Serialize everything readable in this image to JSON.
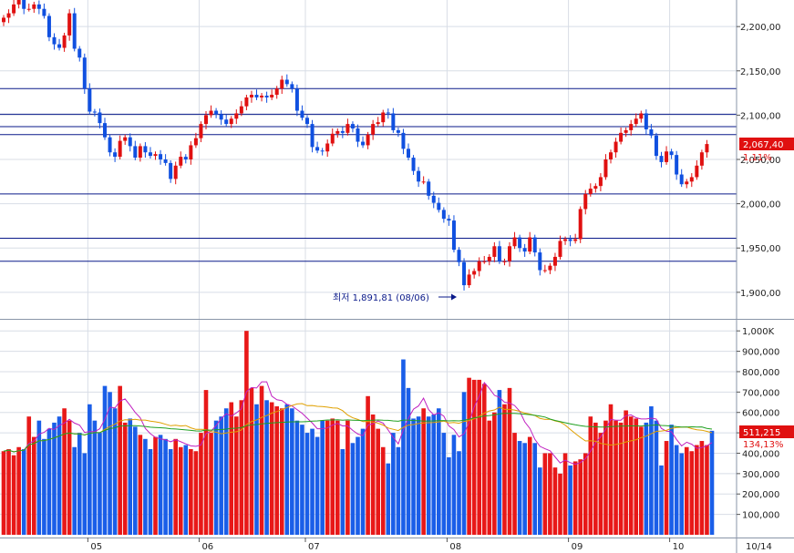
{
  "chart_data": [
    {
      "type": "candlestick",
      "y_range": [
        1870,
        2230
      ],
      "price_axis_ticks": [
        "2,200,00",
        "2,150,00",
        "2,100,00",
        "2,050,00",
        "2,000,00",
        "1,950,00",
        "1,900,00"
      ],
      "price_axis_tick_values": [
        2200,
        2150,
        2100,
        2050,
        2000,
        1950,
        1900
      ],
      "horizontal_levels": [
        2130,
        2101,
        2087,
        2078,
        2011,
        1961,
        1935
      ],
      "last_price_label": "2,067,40",
      "last_price_value": 2067.4,
      "change_pct_label": "1,11%",
      "low_annotation": {
        "text": "최저 1,891,81 (08/06)",
        "value": 1891.81,
        "index": 91
      },
      "ohlc_start": 2205,
      "ohlc_closes": [
        2210,
        2215,
        2225,
        2230,
        2220,
        2220,
        2225,
        2220,
        2212,
        2188,
        2180,
        2176,
        2190,
        2215,
        2175,
        2165,
        2130,
        2104,
        2103,
        2091,
        2075,
        2058,
        2053,
        2071,
        2075,
        2065,
        2052,
        2065,
        2058,
        2054,
        2056,
        2050,
        2046,
        2028,
        2043,
        2053,
        2050,
        2066,
        2074,
        2090,
        2100,
        2105,
        2101,
        2095,
        2090,
        2096,
        2102,
        2110,
        2120,
        2123,
        2120,
        2122,
        2120,
        2123,
        2130,
        2140,
        2135,
        2130,
        2105,
        2097,
        2090,
        2064,
        2060,
        2059,
        2068,
        2079,
        2082,
        2080,
        2090,
        2085,
        2070,
        2066,
        2078,
        2090,
        2092,
        2103,
        2102,
        2083,
        2080,
        2062,
        2052,
        2037,
        2025,
        2025,
        2009,
        2001,
        1993,
        1983,
        1981,
        1948,
        1934,
        1908,
        1920,
        1924,
        1935,
        1935,
        1940,
        1952,
        1935,
        1935,
        1952,
        1962,
        1950,
        1946,
        1962,
        1945,
        1925,
        1925,
        1930,
        1940,
        1958,
        1960,
        1958,
        1960,
        1994,
        2011,
        2017,
        2020,
        2030,
        2050,
        2058,
        2070,
        2080,
        2083,
        2090,
        2096,
        2102,
        2084,
        2077,
        2054,
        2047,
        2059,
        2055,
        2033,
        2022,
        2025,
        2030,
        2043,
        2058,
        2067.4
      ]
    },
    {
      "type": "bar",
      "y_range": [
        0,
        1050000
      ],
      "volume_axis_ticks": [
        "1,000K",
        "900,000",
        "800,000",
        "700,000",
        "600,000",
        "500,000",
        "400,000",
        "300,000",
        "200,000",
        "100,000"
      ],
      "volume_axis_tick_values": [
        1000000,
        900000,
        800000,
        700000,
        600000,
        500000,
        400000,
        300000,
        200000,
        100000
      ],
      "last_volume_label": "511,215",
      "volume_change_pct_label": "134,13%",
      "x_tick_labels": [
        "05",
        "06",
        "07",
        "08",
        "09",
        "10",
        "10/14"
      ],
      "x_tick_indices": [
        17,
        39,
        60,
        88,
        112,
        132
      ],
      "volumes": [
        410000,
        420000,
        390000,
        430000,
        420000,
        580000,
        480000,
        560000,
        470000,
        520000,
        550000,
        580000,
        620000,
        560000,
        430000,
        500000,
        400000,
        640000,
        560000,
        500000,
        730000,
        700000,
        620000,
        730000,
        550000,
        570000,
        530000,
        490000,
        470000,
        420000,
        480000,
        490000,
        470000,
        420000,
        470000,
        430000,
        440000,
        420000,
        410000,
        500000,
        710000,
        500000,
        560000,
        580000,
        620000,
        650000,
        580000,
        660000,
        1000000,
        720000,
        640000,
        730000,
        660000,
        650000,
        630000,
        620000,
        640000,
        620000,
        560000,
        540000,
        500000,
        520000,
        480000,
        560000,
        560000,
        570000,
        560000,
        420000,
        560000,
        450000,
        480000,
        520000,
        680000,
        590000,
        520000,
        430000,
        350000,
        500000,
        430000,
        860000,
        720000,
        570000,
        580000,
        620000,
        580000,
        590000,
        620000,
        500000,
        380000,
        490000,
        410000,
        700000,
        770000,
        760000,
        760000,
        740000,
        560000,
        600000,
        710000,
        640000,
        720000,
        500000,
        460000,
        450000,
        480000,
        450000,
        330000,
        400000,
        400000,
        330000,
        300000,
        400000,
        340000,
        360000,
        370000,
        400000,
        580000,
        550000,
        500000,
        560000,
        640000,
        560000,
        550000,
        610000,
        580000,
        570000,
        530000,
        550000,
        630000,
        560000,
        340000,
        460000,
        540000,
        440000,
        400000,
        430000,
        410000,
        440000,
        460000,
        440000,
        510000
      ]
    }
  ]
}
